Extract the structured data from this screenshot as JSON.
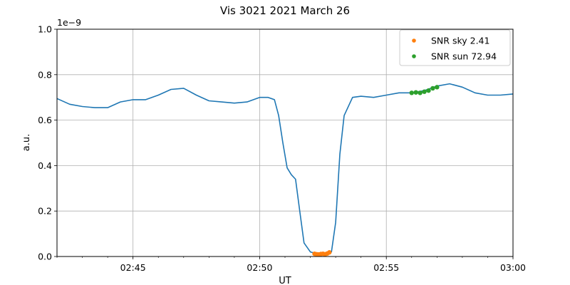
{
  "chart_data": {
    "type": "line",
    "title": "Vis 3021 2021 March 26",
    "xlabel": "UT",
    "ylabel": "a.u.",
    "y_offset_label": "1e−9",
    "xlim": [
      "02:42:00",
      "03:00:00"
    ],
    "ylim": [
      0.0,
      1.0
    ],
    "y_scale_factor": 1e-09,
    "x_ticks": [
      "02:45",
      "02:50",
      "02:55",
      "03:00"
    ],
    "y_ticks": [
      "0.0",
      "0.2",
      "0.4",
      "0.6",
      "0.8",
      "1.0"
    ],
    "grid": true,
    "legend_position": "top-right",
    "series": [
      {
        "kind": "line",
        "color": "#1f77b4",
        "x": [
          "02:42:00",
          "02:42:30",
          "02:43:00",
          "02:43:30",
          "02:44:00",
          "02:44:30",
          "02:45:00",
          "02:45:30",
          "02:46:00",
          "02:46:30",
          "02:47:00",
          "02:47:30",
          "02:48:00",
          "02:48:30",
          "02:49:00",
          "02:49:30",
          "02:50:00",
          "02:50:20",
          "02:50:35",
          "02:50:45",
          "02:50:55",
          "02:51:05",
          "02:51:15",
          "02:51:25",
          "02:51:35",
          "02:51:45",
          "02:52:00",
          "02:52:20",
          "02:52:40",
          "02:52:50",
          "02:53:00",
          "02:53:10",
          "02:53:20",
          "02:53:40",
          "02:54:00",
          "02:54:30",
          "02:55:00",
          "02:55:30",
          "02:56:00",
          "02:56:30",
          "02:57:00",
          "02:57:30",
          "02:58:00",
          "02:58:30",
          "02:59:00",
          "02:59:30",
          "03:00:00"
        ],
        "y": [
          0.695,
          0.67,
          0.66,
          0.655,
          0.655,
          0.68,
          0.69,
          0.69,
          0.71,
          0.735,
          0.74,
          0.71,
          0.685,
          0.68,
          0.675,
          0.68,
          0.7,
          0.7,
          0.69,
          0.62,
          0.5,
          0.39,
          0.36,
          0.34,
          0.2,
          0.06,
          0.02,
          0.01,
          0.01,
          0.02,
          0.15,
          0.45,
          0.62,
          0.7,
          0.705,
          0.7,
          0.71,
          0.72,
          0.72,
          0.73,
          0.75,
          0.76,
          0.745,
          0.72,
          0.71,
          0.71,
          0.715
        ]
      },
      {
        "name": "SNR sky 2.41",
        "kind": "scatter",
        "color": "#ff7f0e",
        "x": [
          "02:52:10",
          "02:52:15",
          "02:52:20",
          "02:52:25",
          "02:52:30",
          "02:52:35",
          "02:52:40",
          "02:52:45"
        ],
        "y": [
          0.012,
          0.01,
          0.009,
          0.011,
          0.012,
          0.01,
          0.013,
          0.018
        ]
      },
      {
        "name": "SNR sun 72.94",
        "kind": "scatter",
        "color": "#2ca02c",
        "x": [
          "02:56:00",
          "02:56:10",
          "02:56:20",
          "02:56:30",
          "02:56:40",
          "02:56:50",
          "02:57:00"
        ],
        "y": [
          0.72,
          0.722,
          0.72,
          0.725,
          0.73,
          0.74,
          0.745
        ]
      }
    ]
  }
}
